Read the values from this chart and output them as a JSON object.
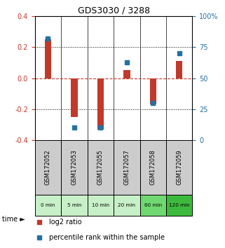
{
  "title": "GDS3030 / 3288",
  "samples": [
    "GSM172052",
    "GSM172053",
    "GSM172055",
    "GSM172057",
    "GSM172058",
    "GSM172059"
  ],
  "times": [
    "0 min",
    "5 min",
    "10 min",
    "20 min",
    "60 min",
    "120 min"
  ],
  "log2_ratio": [
    0.25,
    -0.25,
    -0.33,
    0.05,
    -0.17,
    0.11
  ],
  "percentile": [
    82,
    10,
    10,
    63,
    30,
    70
  ],
  "ylim_left": [
    -0.4,
    0.4
  ],
  "ylim_right": [
    0,
    100
  ],
  "yticks_left": [
    -0.4,
    -0.2,
    0.0,
    0.2,
    0.4
  ],
  "yticks_right": [
    0,
    25,
    50,
    75,
    100
  ],
  "yticklabels_right": [
    "0",
    "25",
    "50",
    "75",
    "100%"
  ],
  "bar_color": "#c0392b",
  "dot_color": "#2471a3",
  "hline_color": "#c0392b",
  "grid_color": "#000000",
  "time_colors": [
    "#c8f0c8",
    "#c8f0c8",
    "#c8f0c8",
    "#c8f0c8",
    "#70d870",
    "#3dba3d"
  ],
  "sample_bg_color": "#cccccc",
  "legend_red_label": "log2 ratio",
  "legend_blue_label": "percentile rank within the sample",
  "bar_width": 0.25,
  "title_color": "#000000",
  "left_label_color": "#c0392b",
  "right_label_color": "#2471a3"
}
